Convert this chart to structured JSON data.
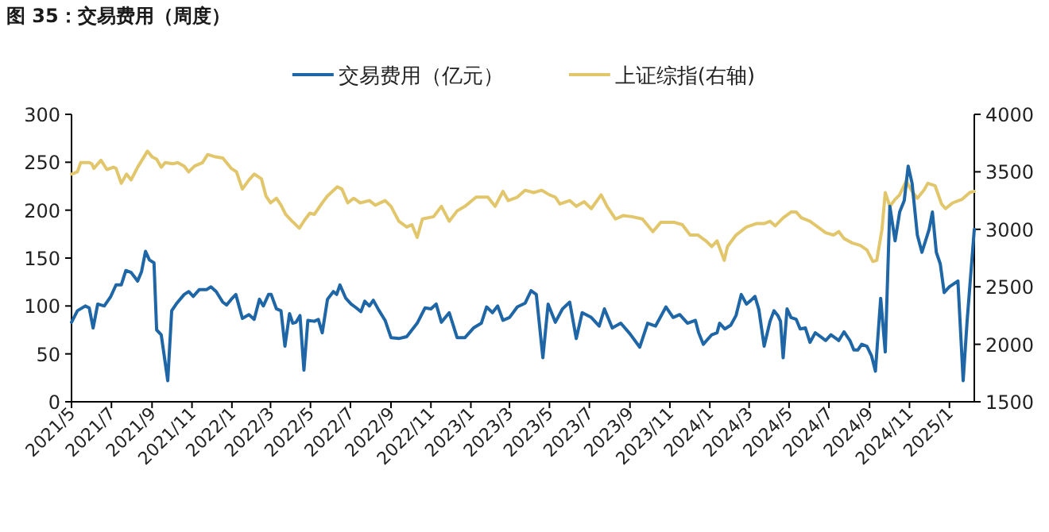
{
  "chart_data": {
    "type": "line",
    "title": "图 35：交易费用（周度）",
    "legend": "top",
    "xlim": [
      "2021-05-01",
      "2025-02-08"
    ],
    "xticks": [
      {
        "value": "2021-05",
        "label": "2021/5"
      },
      {
        "value": "2021-07",
        "label": "2021/7"
      },
      {
        "value": "2021-09",
        "label": "2021/9"
      },
      {
        "value": "2021-11",
        "label": "2021/11"
      },
      {
        "value": "2022-01",
        "label": "2022/1"
      },
      {
        "value": "2022-03",
        "label": "2022/3"
      },
      {
        "value": "2022-05",
        "label": "2022/5"
      },
      {
        "value": "2022-07",
        "label": "2022/7"
      },
      {
        "value": "2022-09",
        "label": "2022/9"
      },
      {
        "value": "2022-11",
        "label": "2022/11"
      },
      {
        "value": "2023-01",
        "label": "2023/1"
      },
      {
        "value": "2023-03",
        "label": "2023/3"
      },
      {
        "value": "2023-05",
        "label": "2023/5"
      },
      {
        "value": "2023-07",
        "label": "2023/7"
      },
      {
        "value": "2023-09",
        "label": "2023/9"
      },
      {
        "value": "2023-11",
        "label": "2023/11"
      },
      {
        "value": "2024-01",
        "label": "2024/1"
      },
      {
        "value": "2024-03",
        "label": "2024/3"
      },
      {
        "value": "2024-05",
        "label": "2024/5"
      },
      {
        "value": "2024-07",
        "label": "2024/7"
      },
      {
        "value": "2024-09",
        "label": "2024/9"
      },
      {
        "value": "2024-11",
        "label": "2024/11"
      },
      {
        "value": "2025-01",
        "label": "2025/1"
      }
    ],
    "ylim": [
      0,
      300
    ],
    "yticks": [
      0,
      50,
      100,
      150,
      200,
      250,
      300
    ],
    "y2lim": [
      1500,
      4000
    ],
    "y2ticks": [
      1500,
      2000,
      2500,
      3000,
      3500,
      4000
    ],
    "series": [
      {
        "name": "交易费用（亿元）",
        "color": "#1f66a6",
        "axis": "y",
        "x": [
          "2021-05-01",
          "2021-05-10",
          "2021-05-22",
          "2021-05-28",
          "2021-06-03",
          "2021-06-10",
          "2021-06-20",
          "2021-06-30",
          "2021-07-08",
          "2021-07-16",
          "2021-07-23",
          "2021-07-31",
          "2021-08-10",
          "2021-08-16",
          "2021-08-22",
          "2021-08-28",
          "2021-09-04",
          "2021-09-08",
          "2021-09-15",
          "2021-09-25",
          "2021-10-01",
          "2021-10-09",
          "2021-10-20",
          "2021-10-27",
          "2021-11-03",
          "2021-11-12",
          "2021-11-23",
          "2021-11-30",
          "2021-12-08",
          "2021-12-18",
          "2021-12-24",
          "2021-12-31",
          "2022-01-07",
          "2022-01-17",
          "2022-01-27",
          "2022-02-04",
          "2022-02-12",
          "2022-02-18",
          "2022-02-26",
          "2022-03-02",
          "2022-03-10",
          "2022-03-17",
          "2022-03-23",
          "2022-03-30",
          "2022-04-04",
          "2022-04-09",
          "2022-04-15",
          "2022-04-21",
          "2022-04-27",
          "2022-05-07",
          "2022-05-13",
          "2022-05-19",
          "2022-05-27",
          "2022-06-05",
          "2022-06-10",
          "2022-06-15",
          "2022-06-24",
          "2022-07-02",
          "2022-07-10",
          "2022-07-17",
          "2022-07-23",
          "2022-07-30",
          "2022-08-05",
          "2022-08-13",
          "2022-08-23",
          "2022-09-01",
          "2022-09-13",
          "2022-09-25",
          "2022-10-11",
          "2022-10-23",
          "2022-11-01",
          "2022-11-09",
          "2022-11-17",
          "2022-11-29",
          "2022-12-11",
          "2022-12-23",
          "2023-01-05",
          "2023-01-17",
          "2023-01-25",
          "2023-02-03",
          "2023-02-11",
          "2023-02-19",
          "2023-03-01",
          "2023-03-13",
          "2023-03-25",
          "2023-04-03",
          "2023-04-11",
          "2023-04-21",
          "2023-04-29",
          "2023-05-10",
          "2023-05-21",
          "2023-06-01",
          "2023-06-11",
          "2023-06-20",
          "2023-07-04",
          "2023-07-16",
          "2023-07-24",
          "2023-08-05",
          "2023-08-18",
          "2023-09-01",
          "2023-09-16",
          "2023-09-28",
          "2023-10-10",
          "2023-10-26",
          "2023-11-06",
          "2023-11-16",
          "2023-11-28",
          "2023-12-10",
          "2023-12-15",
          "2023-12-22",
          "2024-01-04",
          "2024-01-12",
          "2024-01-16",
          "2024-01-24",
          "2024-02-02",
          "2024-02-10",
          "2024-02-18",
          "2024-02-26",
          "2024-03-04",
          "2024-03-10",
          "2024-03-16",
          "2024-03-24",
          "2024-04-02",
          "2024-04-08",
          "2024-04-14",
          "2024-04-18",
          "2024-04-22",
          "2024-04-28",
          "2024-05-04",
          "2024-05-12",
          "2024-05-18",
          "2024-05-26",
          "2024-06-02",
          "2024-06-10",
          "2024-06-18",
          "2024-06-26",
          "2024-07-04",
          "2024-07-12",
          "2024-07-16",
          "2024-07-24",
          "2024-08-02",
          "2024-08-08",
          "2024-08-14",
          "2024-08-20",
          "2024-08-28",
          "2024-09-04",
          "2024-09-10",
          "2024-09-18",
          "2024-09-25",
          "2024-10-02",
          "2024-10-10",
          "2024-10-17",
          "2024-10-24",
          "2024-10-30",
          "2024-11-05",
          "2024-11-13",
          "2024-11-20",
          "2024-12-01",
          "2024-12-06",
          "2024-12-12",
          "2024-12-18",
          "2024-12-24",
          "2025-01-01",
          "2025-01-14",
          "2025-01-22",
          "2025-01-28",
          "2025-02-08"
        ],
        "values": [
          83,
          95,
          100,
          98,
          77,
          102,
          100,
          110,
          122,
          122,
          137,
          135,
          126,
          136,
          157,
          148,
          145,
          75,
          70,
          22,
          95,
          103,
          112,
          115,
          110,
          117,
          117,
          120,
          115,
          104,
          101,
          107,
          112,
          87,
          91,
          86,
          107,
          100,
          112,
          112,
          97,
          95,
          58,
          92,
          82,
          83,
          90,
          33,
          85,
          84,
          86,
          72,
          107,
          115,
          112,
          122,
          108,
          102,
          98,
          94,
          105,
          100,
          106,
          96,
          85,
          67,
          66,
          68,
          82,
          98,
          97,
          102,
          83,
          93,
          67,
          67,
          77,
          82,
          99,
          93,
          100,
          85,
          88,
          99,
          103,
          116,
          112,
          46,
          102,
          83,
          97,
          104,
          66,
          93,
          88,
          79,
          97,
          77,
          82,
          71,
          57,
          82,
          79,
          99,
          88,
          91,
          82,
          85,
          72,
          60,
          70,
          72,
          82,
          76,
          80,
          90,
          112,
          102,
          106,
          110,
          96,
          58,
          84,
          95,
          90,
          84,
          46,
          97,
          88,
          86,
          76,
          77,
          62,
          72,
          68,
          64,
          70,
          66,
          64,
          73,
          64,
          54,
          54,
          60,
          58,
          48,
          32,
          108,
          52,
          204,
          168,
          198,
          210,
          246,
          228,
          174,
          156,
          180,
          198,
          156,
          144,
          114,
          120,
          126,
          22,
          84,
          180
        ]
      },
      {
        "name": "上证综指(右轴)",
        "color": "#e2c66c",
        "axis": "y2",
        "x": [
          "2021-05-01",
          "2021-05-10",
          "2021-05-15",
          "2021-05-28",
          "2021-06-01",
          "2021-06-04",
          "2021-06-15",
          "2021-06-24",
          "2021-07-04",
          "2021-07-08",
          "2021-07-16",
          "2021-07-24",
          "2021-07-31",
          "2021-08-10",
          "2021-08-25",
          "2021-09-01",
          "2021-09-08",
          "2021-09-15",
          "2021-09-21",
          "2021-10-03",
          "2021-10-10",
          "2021-10-20",
          "2021-10-27",
          "2021-11-05",
          "2021-11-17",
          "2021-11-25",
          "2021-12-07",
          "2021-12-18",
          "2021-12-31",
          "2022-01-08",
          "2022-01-17",
          "2022-01-27",
          "2022-02-04",
          "2022-02-15",
          "2022-02-22",
          "2022-03-01",
          "2022-03-10",
          "2022-03-17",
          "2022-03-24",
          "2022-04-03",
          "2022-04-14",
          "2022-04-22",
          "2022-04-30",
          "2022-05-07",
          "2022-05-19",
          "2022-05-27",
          "2022-06-11",
          "2022-06-18",
          "2022-06-27",
          "2022-07-06",
          "2022-07-16",
          "2022-07-30",
          "2022-08-08",
          "2022-08-23",
          "2022-09-01",
          "2022-09-13",
          "2022-09-25",
          "2022-10-03",
          "2022-10-11",
          "2022-10-19",
          "2022-11-05",
          "2022-11-17",
          "2022-11-29",
          "2022-12-11",
          "2022-12-23",
          "2023-01-09",
          "2023-01-27",
          "2023-02-07",
          "2023-02-19",
          "2023-02-27",
          "2023-03-13",
          "2023-03-25",
          "2023-04-07",
          "2023-04-19",
          "2023-05-01",
          "2023-05-10",
          "2023-05-17",
          "2023-06-01",
          "2023-06-11",
          "2023-06-23",
          "2023-07-04",
          "2023-07-19",
          "2023-07-28",
          "2023-08-10",
          "2023-08-22",
          "2023-09-04",
          "2023-09-20",
          "2023-10-06",
          "2023-10-18",
          "2023-11-08",
          "2023-11-20",
          "2023-12-02",
          "2023-12-14",
          "2023-12-26",
          "2024-01-04",
          "2024-01-12",
          "2024-01-23",
          "2024-01-28",
          "2024-02-10",
          "2024-02-26",
          "2024-03-12",
          "2024-03-24",
          "2024-04-02",
          "2024-04-10",
          "2024-04-22",
          "2024-05-04",
          "2024-05-12",
          "2024-05-20",
          "2024-06-02",
          "2024-06-14",
          "2024-06-26",
          "2024-07-08",
          "2024-07-16",
          "2024-07-24",
          "2024-08-06",
          "2024-08-18",
          "2024-08-28",
          "2024-09-06",
          "2024-09-12",
          "2024-09-20",
          "2024-09-25",
          "2024-10-02",
          "2024-10-10",
          "2024-10-17",
          "2024-10-27",
          "2024-11-05",
          "2024-11-13",
          "2024-11-23",
          "2024-11-29",
          "2024-12-10",
          "2024-12-20",
          "2024-12-26",
          "2025-01-06",
          "2025-01-20",
          "2025-02-01",
          "2025-02-08"
        ],
        "values": [
          3480,
          3500,
          3580,
          3580,
          3570,
          3530,
          3600,
          3520,
          3540,
          3530,
          3400,
          3480,
          3430,
          3540,
          3680,
          3630,
          3610,
          3540,
          3580,
          3570,
          3580,
          3550,
          3500,
          3550,
          3580,
          3650,
          3630,
          3620,
          3530,
          3500,
          3350,
          3430,
          3480,
          3440,
          3290,
          3230,
          3270,
          3210,
          3130,
          3070,
          3010,
          3080,
          3140,
          3130,
          3230,
          3290,
          3370,
          3350,
          3230,
          3270,
          3230,
          3250,
          3210,
          3250,
          3200,
          3070,
          3020,
          3040,
          2930,
          3090,
          3110,
          3200,
          3070,
          3160,
          3200,
          3280,
          3280,
          3200,
          3330,
          3250,
          3280,
          3340,
          3320,
          3340,
          3300,
          3280,
          3220,
          3250,
          3200,
          3240,
          3180,
          3300,
          3200,
          3090,
          3120,
          3110,
          3090,
          2980,
          3060,
          3060,
          3040,
          2950,
          2950,
          2900,
          2850,
          2900,
          2730,
          2850,
          2950,
          3020,
          3050,
          3050,
          3070,
          3030,
          3100,
          3150,
          3150,
          3100,
          3070,
          3020,
          2970,
          2950,
          2980,
          2920,
          2880,
          2860,
          2820,
          2720,
          2730,
          3000,
          3320,
          3200,
          3260,
          3300,
          3420,
          3330,
          3270,
          3340,
          3400,
          3380,
          3220,
          3180,
          3230,
          3260,
          3320,
          3330
        ]
      }
    ]
  }
}
